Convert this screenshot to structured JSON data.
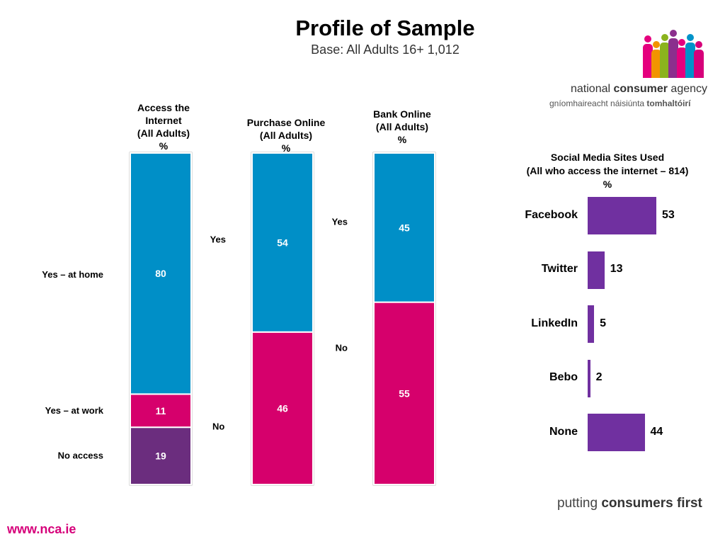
{
  "title": "Profile of Sample",
  "subtitle": "Base: All Adults 16+ 1,012",
  "logo": {
    "name_regular": "national ",
    "name_bold": "consumer",
    "name_end": " agency",
    "irish_regular": "gníomhaireacht náisiúnta ",
    "irish_bold": "tomhaltóirí",
    "figure_colors": [
      "#e5007e",
      "#f29400",
      "#8bb31d",
      "#8b2f8d",
      "#e5007e",
      "#0093c9",
      "#d6007a"
    ]
  },
  "tagline_regular": "putting ",
  "tagline_bold": "consumers first",
  "website": "www.nca.ie",
  "colors": {
    "blue": "#008fc7",
    "pink": "#d6006c",
    "purple": "#6b2d7e",
    "social": "#7030a0"
  },
  "chart_data": [
    {
      "type": "bar",
      "stacked": true,
      "title_lines": [
        "Access the",
        "Internet",
        "(All Adults)",
        "%"
      ],
      "categories": [
        "Access the Internet"
      ],
      "series": [
        {
          "name": "No access",
          "values": [
            19
          ]
        },
        {
          "name": "Yes – at work",
          "values": [
            11
          ]
        },
        {
          "name": "Yes – at home",
          "values": [
            80
          ]
        }
      ],
      "ylim": [
        0,
        110
      ]
    },
    {
      "type": "bar",
      "stacked": true,
      "title_lines": [
        "Purchase Online",
        "(All Adults)",
        "%"
      ],
      "categories": [
        "Purchase Online"
      ],
      "series": [
        {
          "name": "No",
          "values": [
            46
          ]
        },
        {
          "name": "Yes",
          "values": [
            54
          ]
        }
      ],
      "ylim": [
        0,
        100
      ]
    },
    {
      "type": "bar",
      "stacked": true,
      "title_lines": [
        "Bank Online",
        "(All Adults)",
        "%"
      ],
      "categories": [
        "Bank Online"
      ],
      "series": [
        {
          "name": "No",
          "values": [
            55
          ]
        },
        {
          "name": "Yes",
          "values": [
            45
          ]
        }
      ],
      "ylim": [
        0,
        100
      ]
    },
    {
      "type": "bar",
      "orientation": "horizontal",
      "title_lines": [
        "Social Media Sites Used",
        "(All who access the internet – 814)",
        "%"
      ],
      "categories": [
        "Facebook",
        "Twitter",
        "LinkedIn",
        "Bebo",
        "None"
      ],
      "values": [
        53,
        13,
        5,
        2,
        44
      ],
      "xlim": [
        0,
        100
      ]
    }
  ]
}
